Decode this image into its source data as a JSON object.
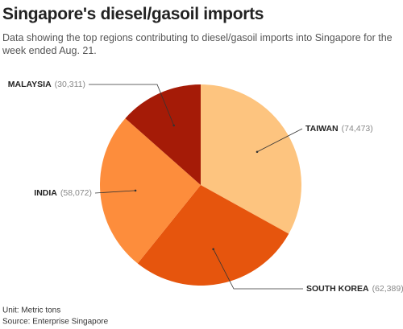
{
  "chart_data": {
    "type": "pie",
    "title": "Singapore's diesel/gasoil imports",
    "subtitle": "Data showing the top regions contributing to diesel/gasoil imports into Singapore for the week ended Aug. 21.",
    "categories": [
      "TAIWAN",
      "SOUTH KOREA",
      "INDIA",
      "MALAYSIA"
    ],
    "values": [
      74473,
      62389,
      58072,
      30311
    ],
    "value_labels": [
      "(74,473)",
      "(62,389)",
      "(58,072)",
      "(30,311)"
    ],
    "colors": [
      "#fdc47f",
      "#e6550d",
      "#fd8d3c",
      "#a51b07"
    ],
    "note": "Unit: Metric tons",
    "source": "Source: Enterprise Singapore"
  }
}
